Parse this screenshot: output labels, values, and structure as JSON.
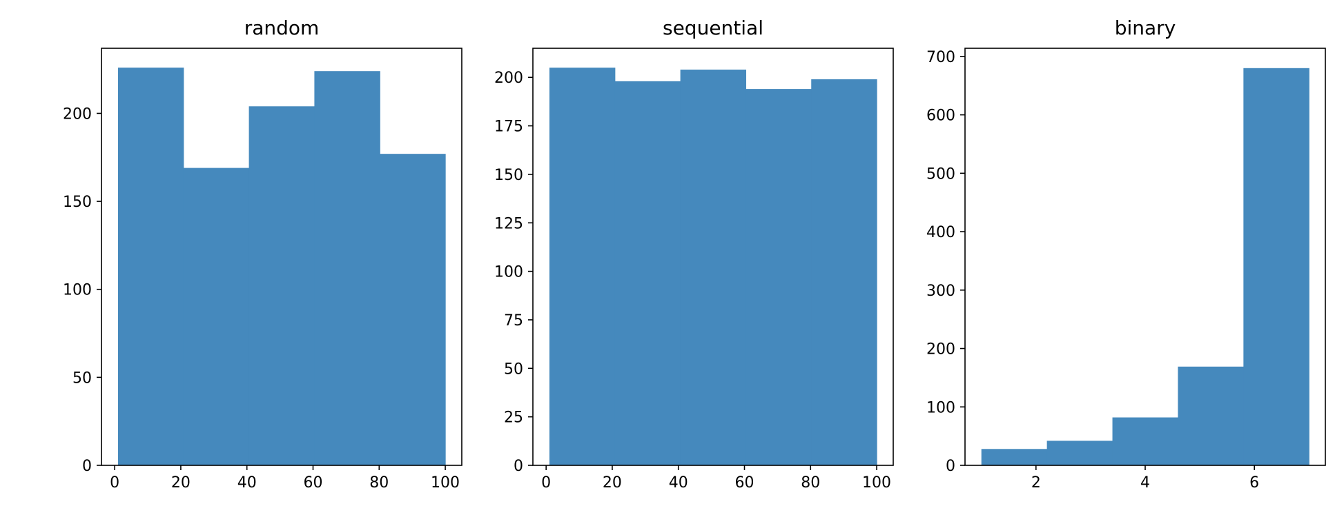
{
  "chart_data": [
    {
      "type": "bar",
      "title": "random",
      "bin_edges": [
        1,
        20.8,
        40.6,
        60.4,
        80.2,
        100
      ],
      "values": [
        226,
        169,
        204,
        224,
        177
      ],
      "xlim": [
        -4,
        105
      ],
      "ylim": [
        0,
        237
      ],
      "xticks": [
        0,
        20,
        40,
        60,
        80,
        100
      ],
      "yticks": [
        0,
        50,
        100,
        150,
        200
      ],
      "xlabel": "",
      "ylabel": "",
      "grid": false,
      "color": "#4589bd"
    },
    {
      "type": "bar",
      "title": "sequential",
      "bin_edges": [
        1,
        20.8,
        40.6,
        60.4,
        80.2,
        100
      ],
      "values": [
        205,
        198,
        204,
        194,
        199
      ],
      "xlim": [
        -4,
        105
      ],
      "ylim": [
        0,
        215
      ],
      "xticks": [
        0,
        20,
        40,
        60,
        80,
        100
      ],
      "yticks": [
        0,
        25,
        50,
        75,
        100,
        125,
        150,
        175,
        200
      ],
      "xlabel": "",
      "ylabel": "",
      "grid": false,
      "color": "#4589bd"
    },
    {
      "type": "bar",
      "title": "binary",
      "bin_edges": [
        1,
        2.2,
        3.4,
        4.6,
        5.8,
        7
      ],
      "values": [
        28,
        42,
        82,
        169,
        680
      ],
      "xlim": [
        0.7,
        7.3
      ],
      "ylim": [
        0,
        714
      ],
      "xticks": [
        2,
        4,
        6
      ],
      "yticks": [
        0,
        100,
        200,
        300,
        400,
        500,
        600,
        700
      ],
      "xlabel": "",
      "ylabel": "",
      "grid": false,
      "color": "#4589bd"
    }
  ]
}
